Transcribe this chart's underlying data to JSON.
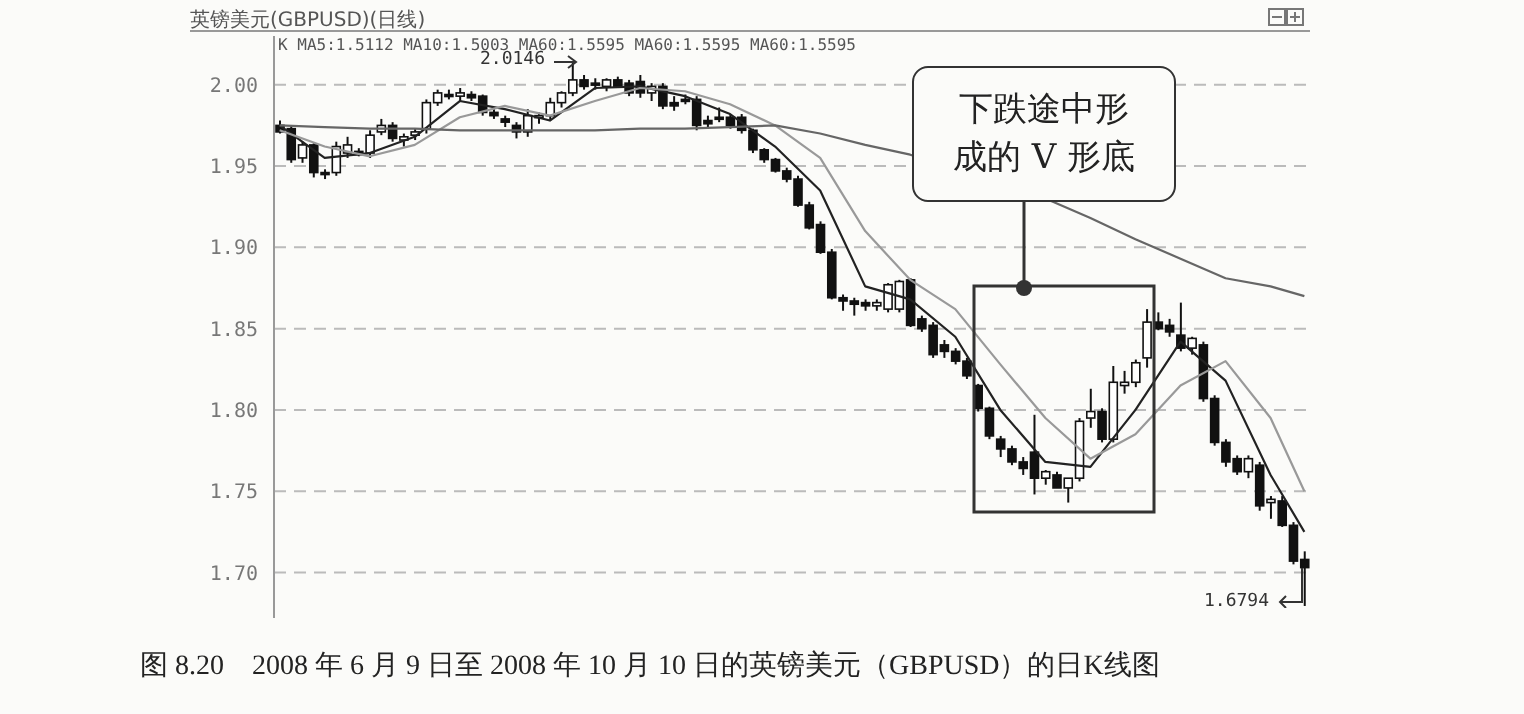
{
  "chart_data": {
    "type": "candlestick",
    "title": "英镑美元(GBPUSD)(日线)",
    "categories": [
      null,
      null,
      null,
      null,
      null,
      null,
      null,
      null,
      null,
      null,
      null,
      null,
      null,
      null,
      null,
      null,
      null,
      null,
      null,
      null,
      null,
      null,
      null,
      null,
      null,
      null,
      null,
      null,
      null,
      null,
      null,
      null,
      null,
      null,
      null,
      null,
      null,
      null,
      null,
      null,
      null,
      null,
      null,
      null,
      null,
      null,
      null,
      null,
      null,
      null,
      null,
      null,
      null,
      null,
      null,
      null,
      null,
      null,
      null,
      null,
      null,
      null,
      null,
      null,
      null,
      null,
      null,
      null,
      null,
      null,
      null,
      null,
      null,
      null,
      null,
      null,
      null,
      null,
      null,
      null,
      null,
      null,
      null,
      null,
      null,
      null,
      null,
      null,
      null,
      null,
      null,
      null
    ],
    "ohlc": [
      [
        1.975,
        1.978,
        1.97,
        1.971
      ],
      [
        1.973,
        1.975,
        1.952,
        1.954
      ],
      [
        1.955,
        1.965,
        1.952,
        1.963
      ],
      [
        1.963,
        1.964,
        1.943,
        1.946
      ],
      [
        1.946,
        1.948,
        1.942,
        1.945
      ],
      [
        1.946,
        1.965,
        1.944,
        1.962
      ],
      [
        1.958,
        1.968,
        1.955,
        1.963
      ],
      [
        1.959,
        1.961,
        1.956,
        1.957
      ],
      [
        1.958,
        1.972,
        1.955,
        1.969
      ],
      [
        1.971,
        1.979,
        1.969,
        1.975
      ],
      [
        1.975,
        1.977,
        1.965,
        1.967
      ],
      [
        1.966,
        1.97,
        1.962,
        1.968
      ],
      [
        1.969,
        1.973,
        1.966,
        1.971
      ],
      [
        1.973,
        1.991,
        1.97,
        1.989
      ],
      [
        1.989,
        1.997,
        1.987,
        1.995
      ],
      [
        1.994,
        1.997,
        1.991,
        1.993
      ],
      [
        1.993,
        1.998,
        1.99,
        1.995
      ],
      [
        1.994,
        1.996,
        1.99,
        1.992
      ],
      [
        1.993,
        1.994,
        1.981,
        1.983
      ],
      [
        1.983,
        1.985,
        1.979,
        1.981
      ],
      [
        1.979,
        1.981,
        1.974,
        1.977
      ],
      [
        1.975,
        1.977,
        1.967,
        1.971
      ],
      [
        1.971,
        1.985,
        1.968,
        1.981
      ],
      [
        1.98,
        1.983,
        1.976,
        1.981
      ],
      [
        1.981,
        1.992,
        1.978,
        1.989
      ],
      [
        1.989,
        1.996,
        1.986,
        1.995
      ],
      [
        1.995,
        2.0146,
        1.993,
        2.003
      ],
      [
        2.003,
        2.006,
        1.997,
        1.999
      ],
      [
        2.001,
        2.004,
        1.997,
        2.0
      ],
      [
        1.999,
        2.004,
        1.996,
        2.003
      ],
      [
        2.003,
        2.005,
        1.998,
        1.999
      ],
      [
        2.001,
        2.003,
        1.993,
        1.995
      ],
      [
        2.002,
        2.006,
        1.992,
        1.995
      ],
      [
        1.995,
        2.001,
        1.99,
        1.999
      ],
      [
        1.999,
        2.001,
        1.985,
        1.987
      ],
      [
        1.989,
        1.993,
        1.984,
        1.987
      ],
      [
        1.991,
        1.994,
        1.988,
        1.99
      ],
      [
        1.991,
        1.993,
        1.972,
        1.975
      ],
      [
        1.978,
        1.981,
        1.973,
        1.976
      ],
      [
        1.98,
        1.986,
        1.977,
        1.979
      ],
      [
        1.98,
        1.982,
        1.973,
        1.975
      ],
      [
        1.98,
        1.982,
        1.97,
        1.972
      ],
      [
        1.972,
        1.973,
        1.958,
        1.96
      ],
      [
        1.96,
        1.961,
        1.952,
        1.954
      ],
      [
        1.954,
        1.955,
        1.946,
        1.947
      ],
      [
        1.947,
        1.949,
        1.94,
        1.942
      ],
      [
        1.942,
        1.944,
        1.925,
        1.926
      ],
      [
        1.926,
        1.928,
        1.911,
        1.912
      ],
      [
        1.914,
        1.916,
        1.896,
        1.897
      ],
      [
        1.897,
        1.899,
        1.868,
        1.869
      ],
      [
        1.869,
        1.871,
        1.861,
        1.867
      ],
      [
        1.867,
        1.869,
        1.858,
        1.865
      ],
      [
        1.866,
        1.868,
        1.861,
        1.864
      ],
      [
        1.864,
        1.868,
        1.861,
        1.866
      ],
      [
        1.862,
        1.878,
        1.86,
        1.877
      ],
      [
        1.862,
        1.88,
        1.86,
        1.879
      ],
      [
        1.88,
        1.881,
        1.851,
        1.852
      ],
      [
        1.856,
        1.858,
        1.848,
        1.85
      ],
      [
        1.852,
        1.854,
        1.832,
        1.834
      ],
      [
        1.84,
        1.843,
        1.832,
        1.836
      ],
      [
        1.836,
        1.838,
        1.828,
        1.83
      ],
      [
        1.83,
        1.832,
        1.819,
        1.821
      ],
      [
        1.815,
        1.816,
        1.799,
        1.801
      ],
      [
        1.801,
        1.802,
        1.782,
        1.784
      ],
      [
        1.782,
        1.784,
        1.771,
        1.776
      ],
      [
        1.776,
        1.778,
        1.766,
        1.768
      ],
      [
        1.768,
        1.771,
        1.76,
        1.764
      ],
      [
        1.774,
        1.797,
        1.748,
        1.758
      ],
      [
        1.758,
        1.763,
        1.754,
        1.762
      ],
      [
        1.76,
        1.762,
        1.752,
        1.752
      ],
      [
        1.752,
        1.758,
        1.743,
        1.758
      ],
      [
        1.758,
        1.795,
        1.756,
        1.793
      ],
      [
        1.795,
        1.813,
        1.789,
        1.799
      ],
      [
        1.799,
        1.801,
        1.78,
        1.782
      ],
      [
        1.782,
        1.827,
        1.78,
        1.817
      ],
      [
        1.815,
        1.824,
        1.81,
        1.817
      ],
      [
        1.817,
        1.831,
        1.814,
        1.829
      ],
      [
        1.832,
        1.862,
        1.826,
        1.854
      ],
      [
        1.854,
        1.86,
        1.849,
        1.85
      ],
      [
        1.852,
        1.856,
        1.845,
        1.848
      ],
      [
        1.846,
        1.866,
        1.836,
        1.838
      ],
      [
        1.838,
        1.845,
        1.834,
        1.844
      ],
      [
        1.84,
        1.842,
        1.805,
        1.807
      ],
      [
        1.807,
        1.809,
        1.778,
        1.78
      ],
      [
        1.78,
        1.782,
        1.765,
        1.768
      ],
      [
        1.77,
        1.772,
        1.76,
        1.762
      ],
      [
        1.762,
        1.772,
        1.758,
        1.77
      ],
      [
        1.766,
        1.768,
        1.738,
        1.741
      ],
      [
        1.743,
        1.747,
        1.733,
        1.745
      ],
      [
        1.744,
        1.747,
        1.728,
        1.729
      ],
      [
        1.729,
        1.731,
        1.705,
        1.707
      ],
      [
        1.708,
        1.713,
        1.6794,
        1.703
      ]
    ],
    "series": [
      {
        "type": "line",
        "color": "#222222",
        "values": [
          1.975,
          null,
          null,
          null,
          1.955,
          null,
          null,
          null,
          1.958,
          null,
          null,
          null,
          1.968,
          null,
          null,
          null,
          1.99,
          null,
          null,
          null,
          1.985,
          null,
          null,
          null,
          1.978,
          null,
          null,
          null,
          1.998,
          null,
          null,
          null,
          1.999,
          null,
          null,
          null,
          1.993,
          null,
          null,
          null,
          1.982,
          null,
          null,
          null,
          1.962,
          null,
          null,
          null,
          1.935,
          null,
          null,
          null,
          1.876,
          null,
          null,
          null,
          1.868,
          null,
          null,
          null,
          1.845,
          null,
          null,
          null,
          1.8,
          null,
          null,
          null,
          1.768,
          null,
          null,
          null,
          1.765,
          null,
          null,
          null,
          1.8,
          null,
          null,
          null,
          1.842,
          null,
          null,
          null,
          1.818,
          null,
          null,
          null,
          1.76,
          null,
          null,
          1.725
        ]
      },
      {
        "type": "line",
        "color": "#999999",
        "values": [
          1.972,
          null,
          null,
          null,
          1.962,
          null,
          null,
          null,
          1.956,
          null,
          null,
          null,
          1.963,
          null,
          null,
          null,
          1.98,
          null,
          null,
          null,
          1.987,
          null,
          null,
          null,
          1.981,
          null,
          null,
          null,
          1.99,
          null,
          null,
          null,
          1.998,
          null,
          null,
          null,
          1.996,
          null,
          null,
          null,
          1.988,
          null,
          null,
          null,
          1.975,
          null,
          null,
          null,
          1.955,
          null,
          null,
          null,
          1.91,
          null,
          null,
          null,
          1.88,
          null,
          null,
          null,
          1.862,
          null,
          null,
          null,
          1.828,
          null,
          null,
          null,
          1.795,
          null,
          null,
          null,
          1.77,
          null,
          null,
          null,
          1.785,
          null,
          null,
          null,
          1.815,
          null,
          null,
          null,
          1.83,
          null,
          null,
          null,
          1.795,
          null,
          null,
          1.75
        ]
      },
      {
        "type": "line",
        "color": "#666666",
        "values": [
          1.975,
          null,
          null,
          null,
          1.974,
          null,
          null,
          null,
          1.973,
          null,
          null,
          null,
          1.973,
          null,
          null,
          null,
          1.972,
          null,
          null,
          null,
          1.972,
          null,
          null,
          null,
          1.972,
          null,
          null,
          null,
          1.972,
          null,
          null,
          null,
          1.973,
          null,
          null,
          null,
          1.973,
          null,
          null,
          null,
          1.974,
          null,
          null,
          null,
          1.975,
          null,
          null,
          null,
          1.97,
          null,
          null,
          null,
          1.963,
          null,
          null,
          null,
          1.957,
          null,
          null,
          null,
          null,
          null,
          null,
          null,
          null,
          null,
          null,
          null,
          1.93,
          null,
          null,
          null,
          1.918,
          null,
          null,
          null,
          1.905,
          null,
          null,
          null,
          1.893,
          null,
          null,
          null,
          1.881,
          null,
          null,
          null,
          1.876,
          null,
          null,
          1.87
        ]
      }
    ],
    "ylim": [
      1.672,
      2.03
    ],
    "yticks": [
      {
        "value": 1.7,
        "label": "1.70"
      },
      1.75,
      {
        "value": 1.8,
        "label": "1.80"
      },
      1.85,
      {
        "value": 1.9,
        "label": "1.90"
      },
      1.95,
      {
        "value": 2.0,
        "label": "2.00"
      }
    ],
    "grid": "y",
    "tick_labels": "y",
    "marker": "none",
    "line_style": "solid",
    "annotations": [
      "K MA5:1.5112 MA10:1.5003 MA60:1.5595 MA60:1.5595 MA60:1.5595",
      "2.0146",
      "1.6794",
      "下跌途中形成的 V 形底",
      "图 8.20　2008 年 6 月 9 日至 2008 年 10 月 10 日的英镑美元（GBPUSD）的日K线图"
    ]
  }
}
